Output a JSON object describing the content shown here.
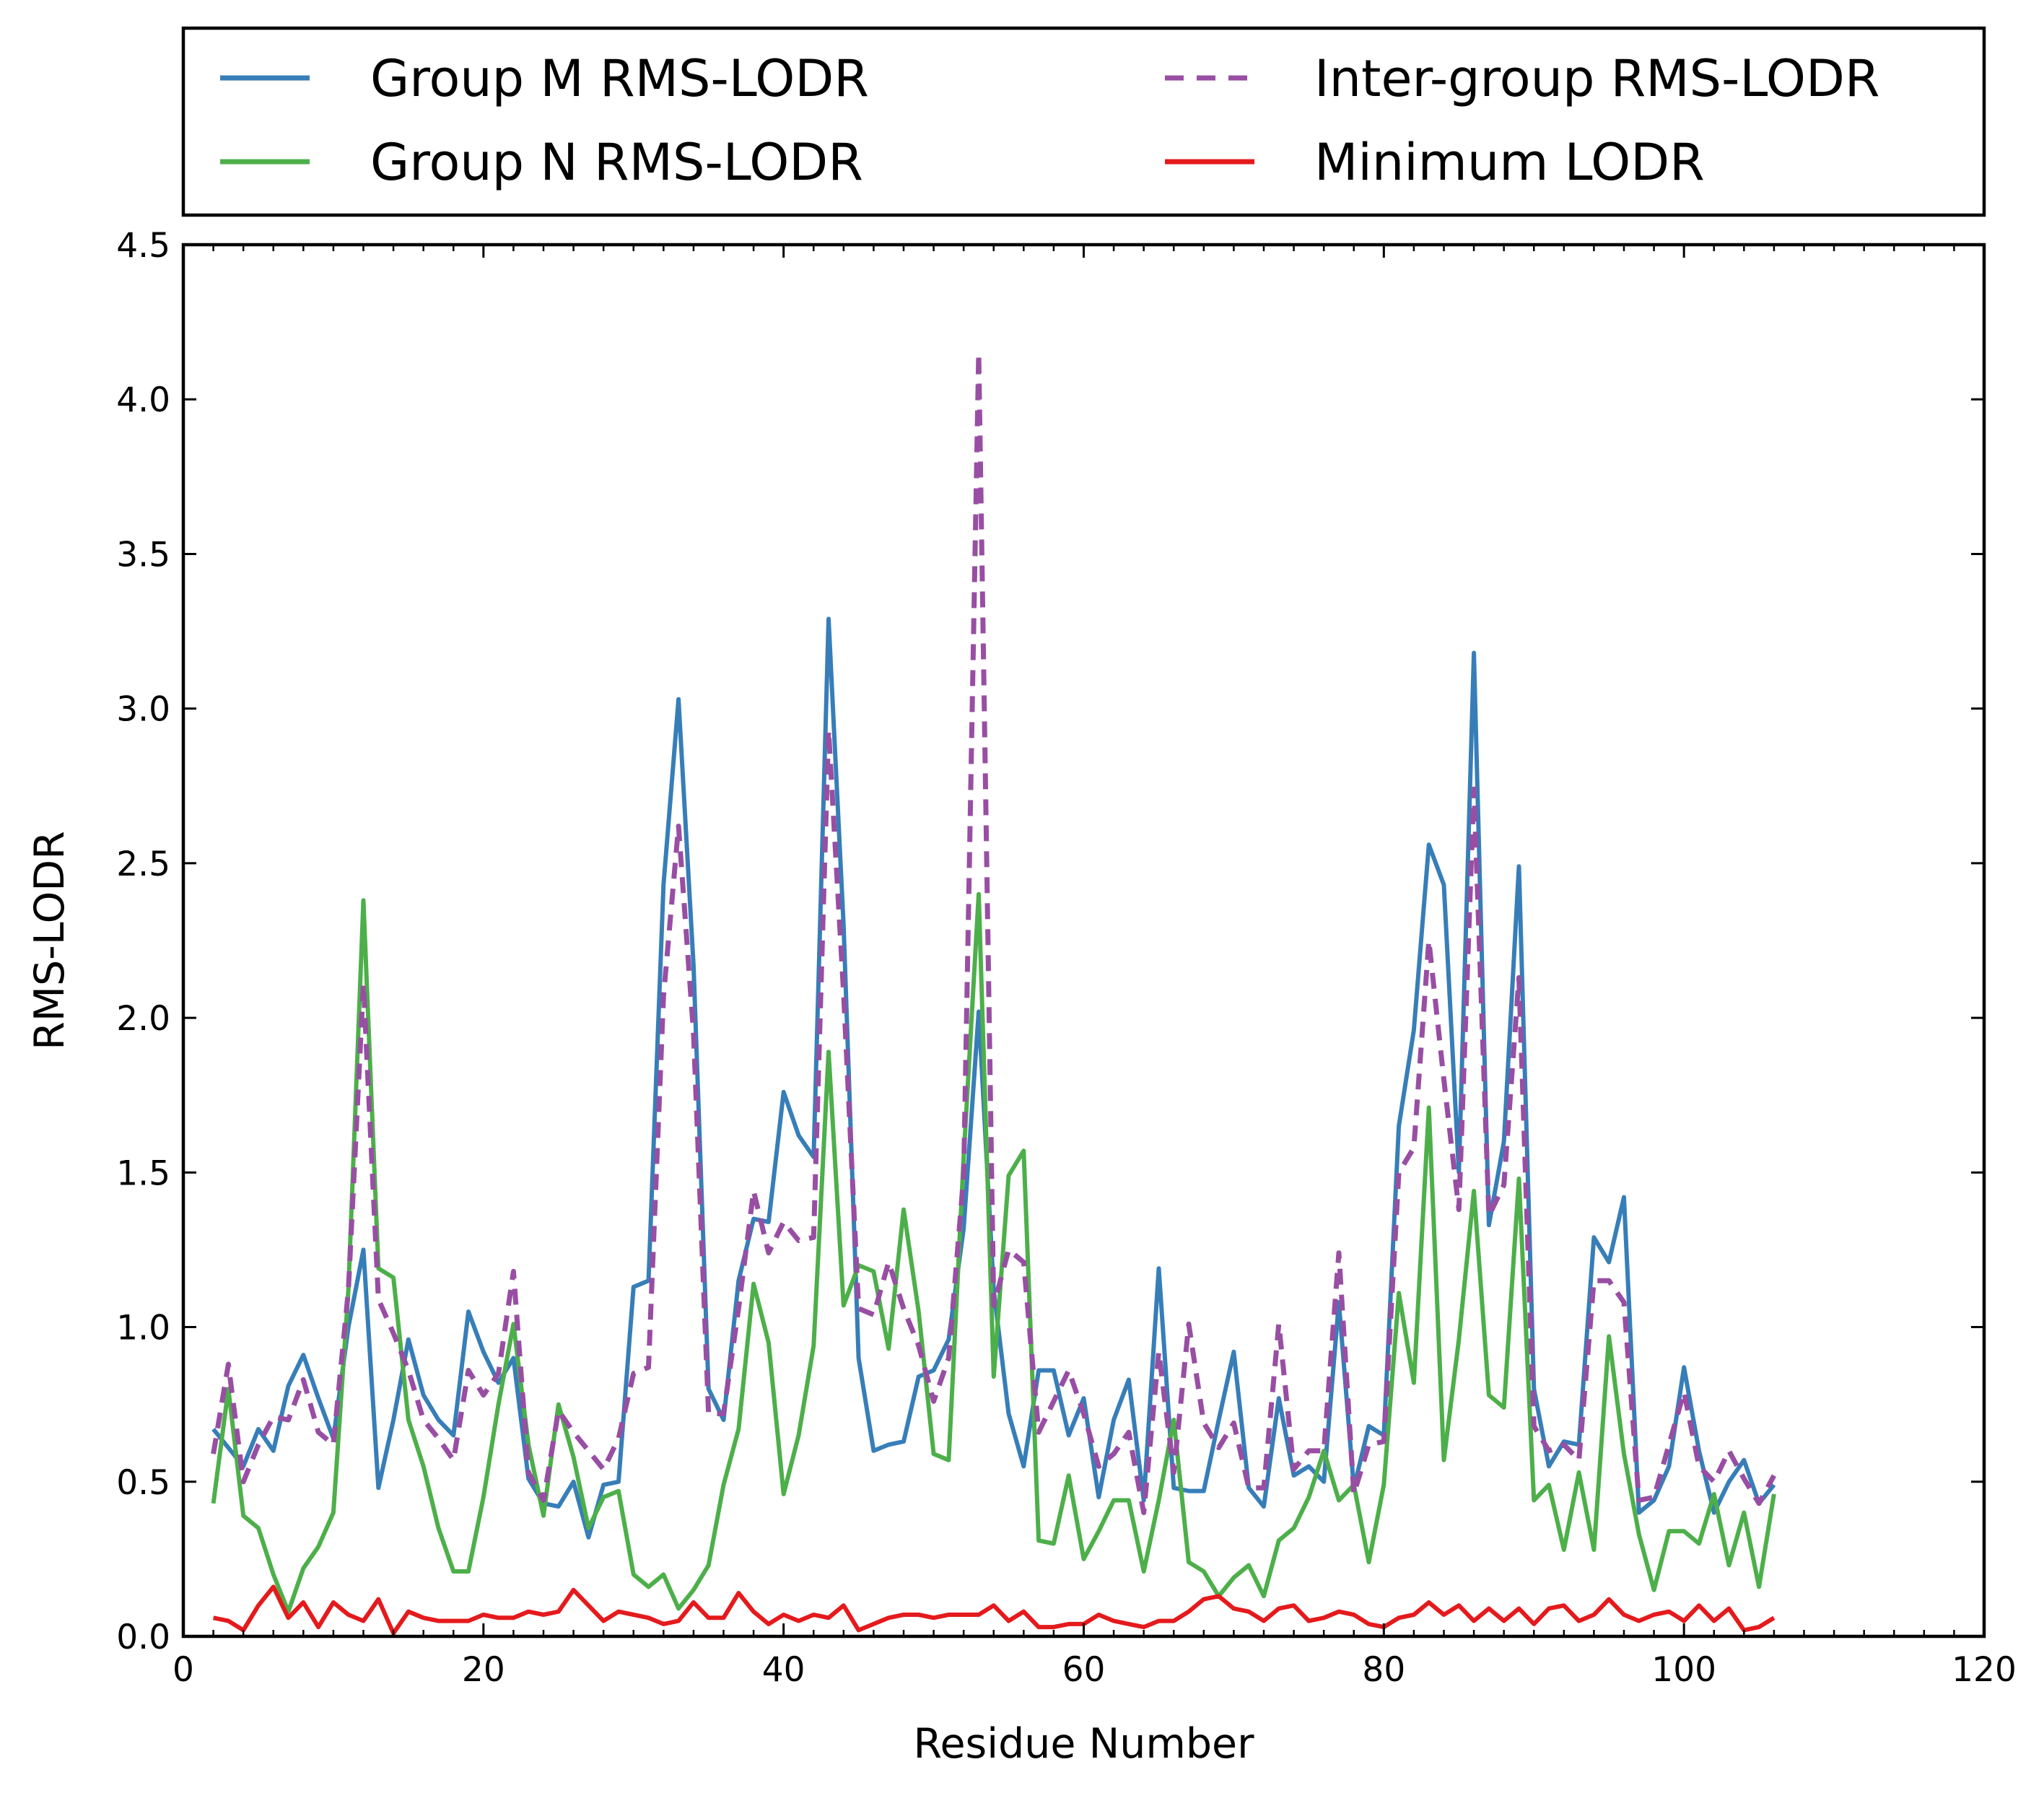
{
  "chart_data": {
    "type": "line",
    "title": "",
    "xlabel": "Residue Number",
    "ylabel": "RMS-LODR",
    "xlim": [
      0,
      120
    ],
    "ylim": [
      0,
      4.5
    ],
    "xticks": [
      0,
      20,
      40,
      60,
      80,
      100,
      120
    ],
    "yticks": [
      0.0,
      0.5,
      1.0,
      1.5,
      2.0,
      2.5,
      3.0,
      3.5,
      4.0,
      4.5
    ],
    "xtick_labels": [
      "0",
      "20",
      "40",
      "60",
      "80",
      "100",
      "120"
    ],
    "ytick_labels": [
      "0.0",
      "0.5",
      "1.0",
      "1.5",
      "2.0",
      "2.5",
      "3.0",
      "3.5",
      "4.0",
      "4.5"
    ],
    "grid": false,
    "legend_position": "above plot, two columns",
    "x": [
      2,
      3,
      4,
      5,
      6,
      7,
      8,
      9,
      10,
      11,
      12,
      13,
      14,
      15,
      16,
      17,
      18,
      19,
      20,
      21,
      22,
      23,
      24,
      25,
      26,
      27,
      28,
      29,
      30,
      31,
      32,
      33,
      34,
      35,
      36,
      37,
      38,
      39,
      40,
      41,
      42,
      43,
      44,
      45,
      46,
      47,
      48,
      49,
      50,
      51,
      52,
      53,
      54,
      55,
      56,
      57,
      58,
      59,
      60,
      61,
      62,
      63,
      64,
      65,
      66,
      67,
      68,
      69,
      70,
      71,
      72,
      73,
      74,
      75,
      76,
      77,
      78,
      79,
      80,
      81,
      82,
      83,
      84,
      85,
      86,
      87,
      88,
      89,
      90,
      91,
      92,
      93,
      94,
      95,
      96,
      97,
      98,
      99,
      100,
      101,
      102,
      103,
      104,
      105,
      106
    ],
    "series": [
      {
        "name": "Group M RMS-LODR",
        "color": "#377eb8",
        "dash": "solid",
        "values": [
          0.67,
          0.61,
          0.55,
          0.67,
          0.6,
          0.81,
          0.91,
          0.77,
          0.64,
          1.0,
          1.25,
          0.48,
          0.7,
          0.96,
          0.78,
          0.7,
          0.65,
          1.05,
          0.92,
          0.82,
          0.9,
          0.51,
          0.43,
          0.42,
          0.5,
          0.32,
          0.49,
          0.5,
          1.13,
          1.15,
          2.43,
          3.03,
          2.17,
          0.8,
          0.7,
          1.15,
          1.35,
          1.34,
          1.76,
          1.62,
          1.55,
          3.29,
          2.3,
          0.9,
          0.6,
          0.62,
          0.63,
          0.84,
          0.86,
          0.96,
          1.32,
          2.02,
          1.12,
          0.72,
          0.55,
          0.86,
          0.86,
          0.65,
          0.77,
          0.45,
          0.7,
          0.83,
          0.44,
          1.19,
          0.48,
          0.47,
          0.47,
          0.7,
          0.92,
          0.48,
          0.42,
          0.77,
          0.52,
          0.55,
          0.5,
          1.08,
          0.48,
          0.68,
          0.65,
          1.65,
          1.96,
          2.56,
          2.43,
          1.5,
          3.18,
          1.33,
          1.6,
          2.49,
          0.8,
          0.55,
          0.63,
          0.62,
          1.29,
          1.21,
          1.42,
          0.4,
          0.44,
          0.55,
          0.87,
          0.6,
          0.4,
          0.5,
          0.57,
          0.43,
          0.49
        ]
      },
      {
        "name": "Group N RMS-LODR",
        "color": "#4daf4a",
        "dash": "solid",
        "values": [
          0.43,
          0.8,
          0.39,
          0.35,
          0.2,
          0.08,
          0.22,
          0.29,
          0.4,
          1.12,
          2.38,
          1.19,
          1.16,
          0.7,
          0.55,
          0.35,
          0.21,
          0.21,
          0.45,
          0.75,
          1.01,
          0.62,
          0.39,
          0.75,
          0.58,
          0.35,
          0.45,
          0.47,
          0.2,
          0.16,
          0.2,
          0.09,
          0.15,
          0.23,
          0.49,
          0.67,
          1.14,
          0.95,
          0.46,
          0.65,
          0.94,
          1.89,
          1.07,
          1.2,
          1.18,
          0.93,
          1.38,
          1.05,
          0.59,
          0.57,
          1.55,
          2.4,
          0.84,
          1.49,
          1.57,
          0.31,
          0.3,
          0.52,
          0.25,
          0.34,
          0.44,
          0.44,
          0.21,
          0.44,
          0.7,
          0.24,
          0.21,
          0.13,
          0.19,
          0.23,
          0.13,
          0.31,
          0.35,
          0.45,
          0.6,
          0.44,
          0.49,
          0.24,
          0.49,
          1.11,
          0.82,
          1.71,
          0.57,
          0.96,
          1.44,
          0.78,
          0.74,
          1.48,
          0.44,
          0.49,
          0.28,
          0.53,
          0.28,
          0.97,
          0.59,
          0.33,
          0.15,
          0.34,
          0.34,
          0.3,
          0.46,
          0.23,
          0.4,
          0.16,
          0.46
        ]
      },
      {
        "name": "Inter-group RMS-LODR",
        "color": "#984ea3",
        "dash": "dashed",
        "values": [
          0.59,
          0.88,
          0.5,
          0.62,
          0.71,
          0.7,
          0.83,
          0.66,
          0.62,
          1.12,
          2.11,
          1.09,
          0.98,
          0.86,
          0.7,
          0.64,
          0.57,
          0.86,
          0.78,
          0.85,
          1.18,
          0.53,
          0.44,
          0.73,
          0.66,
          0.6,
          0.54,
          0.64,
          0.85,
          0.87,
          2.07,
          2.62,
          1.95,
          0.72,
          0.72,
          1.06,
          1.44,
          1.24,
          1.34,
          1.28,
          1.29,
          2.93,
          2.08,
          1.06,
          1.04,
          1.21,
          1.06,
          0.94,
          0.76,
          0.9,
          1.49,
          4.15,
          1.07,
          1.25,
          1.21,
          0.66,
          0.76,
          0.86,
          0.72,
          0.55,
          0.59,
          0.66,
          0.4,
          0.92,
          0.53,
          1.01,
          0.69,
          0.61,
          0.69,
          0.48,
          0.48,
          1.01,
          0.54,
          0.6,
          0.6,
          1.24,
          0.46,
          0.62,
          0.63,
          1.5,
          1.58,
          2.25,
          1.8,
          1.38,
          2.74,
          1.36,
          1.46,
          2.13,
          0.68,
          0.6,
          0.62,
          0.57,
          1.15,
          1.15,
          1.08,
          0.44,
          0.45,
          0.62,
          0.79,
          0.55,
          0.5,
          0.6,
          0.51,
          0.43,
          0.52
        ]
      },
      {
        "name": "Minimum LODR",
        "color": "#e41a1c",
        "dash": "solid",
        "values": [
          0.06,
          0.05,
          0.02,
          0.1,
          0.16,
          0.06,
          0.11,
          0.03,
          0.11,
          0.07,
          0.05,
          0.12,
          0.01,
          0.08,
          0.06,
          0.05,
          0.05,
          0.05,
          0.07,
          0.06,
          0.06,
          0.08,
          0.07,
          0.08,
          0.15,
          0.1,
          0.05,
          0.08,
          0.07,
          0.06,
          0.04,
          0.05,
          0.11,
          0.06,
          0.06,
          0.14,
          0.08,
          0.04,
          0.07,
          0.05,
          0.07,
          0.06,
          0.1,
          0.02,
          0.04,
          0.06,
          0.07,
          0.07,
          0.06,
          0.07,
          0.07,
          0.07,
          0.1,
          0.05,
          0.08,
          0.03,
          0.03,
          0.04,
          0.04,
          0.07,
          0.05,
          0.04,
          0.03,
          0.05,
          0.05,
          0.08,
          0.12,
          0.13,
          0.09,
          0.08,
          0.05,
          0.09,
          0.1,
          0.05,
          0.06,
          0.08,
          0.07,
          0.04,
          0.03,
          0.06,
          0.07,
          0.11,
          0.07,
          0.1,
          0.05,
          0.09,
          0.05,
          0.09,
          0.04,
          0.09,
          0.1,
          0.05,
          0.07,
          0.12,
          0.07,
          0.05,
          0.07,
          0.08,
          0.05,
          0.1,
          0.05,
          0.09,
          0.02,
          0.03,
          0.06
        ]
      }
    ],
    "legend": [
      {
        "label": "Group M RMS-LODR",
        "color": "#377eb8",
        "dash": "solid"
      },
      {
        "label": "Inter-group RMS-LODR",
        "color": "#984ea3",
        "dash": "dashed"
      },
      {
        "label": "Group N RMS-LODR",
        "color": "#4daf4a",
        "dash": "solid"
      },
      {
        "label": "Minimum LODR",
        "color": "#e41a1c",
        "dash": "solid"
      }
    ]
  }
}
